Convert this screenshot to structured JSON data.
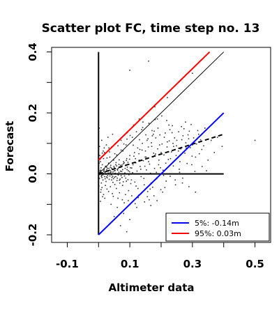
{
  "chart_data": {
    "type": "scatter",
    "title": "Scatter plot FC, time step no. 13",
    "xlabel": "Altimeter data",
    "ylabel": "Forecast",
    "xlim": [
      -0.15,
      0.55
    ],
    "ylim": [
      -0.225,
      0.415
    ],
    "x_ticks": [
      {
        "value": -0.1,
        "label": "-0.1"
      },
      {
        "value": 0.1,
        "label": "0.1"
      },
      {
        "value": 0.3,
        "label": "0.3"
      },
      {
        "value": 0.5,
        "label": "0.5"
      }
    ],
    "x_minor_ticks": [
      0.0,
      0.2,
      0.4
    ],
    "y_ticks": [
      {
        "value": -0.2,
        "label": "-0.2"
      },
      {
        "value": 0.0,
        "label": "0.0"
      },
      {
        "value": 0.2,
        "label": "0.2"
      },
      {
        "value": 0.4,
        "label": "0.4"
      }
    ],
    "y_minor_ticks": [
      -0.1,
      0.1,
      0.3
    ],
    "grid": false,
    "legend_position": "bottom-right",
    "colors": {
      "red": "#ff0000",
      "blue": "#0000ff",
      "black": "#000000"
    },
    "lines": [
      {
        "id": "vertical-axis",
        "color": "#000000",
        "style": "solid",
        "x1": 0.0,
        "y1": -0.2,
        "x2": 0.0,
        "y2": 0.4
      },
      {
        "id": "horizontal-zero",
        "color": "#000000",
        "style": "solid",
        "x1": 0.0,
        "y1": 0.0,
        "x2": 0.4,
        "y2": 0.0
      },
      {
        "id": "one-to-one",
        "color": "#000000",
        "style": "solid",
        "x1": 0.0,
        "y1": 0.0,
        "x2": 0.4,
        "y2": 0.4
      },
      {
        "id": "regression",
        "color": "#000000",
        "style": "dashed",
        "x1": 0.0,
        "y1": 0.0,
        "x2": 0.4,
        "y2": 0.13
      },
      {
        "id": "quantile-95",
        "color": "#ff0000",
        "style": "solid",
        "x1": 0.0,
        "y1": 0.045,
        "x2": 0.355,
        "y2": 0.4
      },
      {
        "id": "quantile-5",
        "color": "#0000ff",
        "style": "solid",
        "x1": 0.0,
        "y1": -0.2,
        "x2": 0.4,
        "y2": 0.2
      }
    ],
    "legend": [
      {
        "label": "5%: -0.14m",
        "color": "#0000ff"
      },
      {
        "label": "95%:  0.03m",
        "color": "#ff0000"
      }
    ],
    "points": [
      [
        0.005,
        0.01
      ],
      [
        0.01,
        -0.005
      ],
      [
        0.015,
        0.002
      ],
      [
        0.008,
        0.02
      ],
      [
        0.02,
        0.005
      ],
      [
        0.003,
        -0.015
      ],
      [
        0.012,
        0.03
      ],
      [
        0.025,
        -0.01
      ],
      [
        0.018,
        0.015
      ],
      [
        0.006,
        0.04
      ],
      [
        0.03,
        0.0
      ],
      [
        0.009,
        -0.03
      ],
      [
        0.022,
        0.025
      ],
      [
        0.035,
        0.012
      ],
      [
        0.014,
        -0.02
      ],
      [
        0.004,
        0.06
      ],
      [
        0.028,
        0.018
      ],
      [
        0.04,
        0.006
      ],
      [
        0.011,
        -0.045
      ],
      [
        0.032,
        0.035
      ],
      [
        0.045,
        -0.008
      ],
      [
        0.016,
        0.05
      ],
      [
        0.038,
        0.022
      ],
      [
        0.05,
        0.01
      ],
      [
        0.007,
        -0.06
      ],
      [
        0.024,
        -0.025
      ],
      [
        0.055,
        0.03
      ],
      [
        0.042,
        -0.02
      ],
      [
        0.06,
        0.015
      ],
      [
        0.019,
        0.07
      ],
      [
        0.048,
        0.045
      ],
      [
        0.065,
        0.005
      ],
      [
        0.013,
        -0.075
      ],
      [
        0.052,
        -0.035
      ],
      [
        0.07,
        0.028
      ],
      [
        0.036,
        0.055
      ],
      [
        0.075,
        -0.012
      ],
      [
        0.027,
        -0.05
      ],
      [
        0.08,
        0.04
      ],
      [
        0.058,
        0.062
      ],
      [
        0.085,
        0.018
      ],
      [
        0.044,
        -0.065
      ],
      [
        0.09,
        0.05
      ],
      [
        0.068,
        -0.03
      ],
      [
        0.095,
        0.01
      ],
      [
        0.033,
        0.085
      ],
      [
        0.1,
        0.06
      ],
      [
        0.078,
        0.075
      ],
      [
        0.105,
        -0.02
      ],
      [
        0.062,
        -0.08
      ],
      [
        0.11,
        0.03
      ],
      [
        0.088,
        0.095
      ],
      [
        0.115,
        0.07
      ],
      [
        0.072,
        0.11
      ],
      [
        0.12,
        -0.04
      ],
      [
        0.096,
        -0.055
      ],
      [
        0.125,
        0.085
      ],
      [
        0.054,
        0.1
      ],
      [
        0.13,
        0.045
      ],
      [
        0.108,
        0.12
      ],
      [
        0.135,
        0.015
      ],
      [
        0.082,
        -0.095
      ],
      [
        0.14,
        0.1
      ],
      [
        0.118,
        0.05
      ],
      [
        0.145,
        -0.015
      ],
      [
        0.092,
        0.135
      ],
      [
        0.15,
        0.075
      ],
      [
        0.128,
        -0.07
      ],
      [
        0.155,
        0.11
      ],
      [
        0.102,
        0.02
      ],
      [
        0.16,
        0.04
      ],
      [
        0.138,
        0.145
      ],
      [
        0.165,
        -0.05
      ],
      [
        0.112,
        0.16
      ],
      [
        0.17,
        0.09
      ],
      [
        0.148,
        0.025
      ],
      [
        0.175,
        0.13
      ],
      [
        0.122,
        -0.11
      ],
      [
        0.18,
        0.06
      ],
      [
        0.158,
        0.115
      ],
      [
        0.185,
        0.005
      ],
      [
        0.132,
        0.08
      ],
      [
        0.19,
        0.15
      ],
      [
        0.168,
        -0.03
      ],
      [
        0.195,
        0.095
      ],
      [
        0.142,
        0.17
      ],
      [
        0.2,
        0.07
      ],
      [
        0.178,
        0.14
      ],
      [
        0.205,
        -0.06
      ],
      [
        0.152,
        0.055
      ],
      [
        0.21,
        0.12
      ],
      [
        0.188,
        0.18
      ],
      [
        0.215,
        0.035
      ],
      [
        0.162,
        -0.085
      ],
      [
        0.22,
        0.105
      ],
      [
        0.198,
        0.02
      ],
      [
        0.225,
        0.16
      ],
      [
        0.172,
        0.125
      ],
      [
        0.23,
        0.05
      ],
      [
        0.208,
        -0.005
      ],
      [
        0.235,
        0.135
      ],
      [
        0.182,
        0.065
      ],
      [
        0.24,
        0.09
      ],
      [
        0.218,
        0.175
      ],
      [
        0.245,
        -0.02
      ],
      [
        0.192,
        0.03
      ],
      [
        0.25,
        0.11
      ],
      [
        0.228,
        0.145
      ],
      [
        0.255,
        0.075
      ],
      [
        0.202,
        0.19
      ],
      [
        0.26,
        0.04
      ],
      [
        0.238,
        0.1
      ],
      [
        0.265,
        0.155
      ],
      [
        0.212,
        -0.045
      ],
      [
        0.27,
        0.125
      ],
      [
        0.248,
        0.06
      ],
      [
        0.28,
        0.085
      ],
      [
        0.258,
        0.015
      ],
      [
        0.29,
        0.14
      ],
      [
        0.268,
        -0.03
      ],
      [
        0.3,
        0.095
      ],
      [
        0.278,
        0.17
      ],
      [
        0.31,
        0.055
      ],
      [
        0.288,
        0.115
      ],
      [
        0.32,
        0.13
      ],
      [
        0.298,
        0.03
      ],
      [
        0.33,
        0.08
      ],
      [
        0.34,
        0.15
      ],
      [
        0.35,
        0.045
      ],
      [
        0.36,
        0.11
      ],
      [
        0.37,
        0.07
      ],
      [
        0.38,
        0.12
      ],
      [
        0.395,
        0.09
      ],
      [
        0.31,
        -0.06
      ],
      [
        0.345,
        0.01
      ],
      [
        0.5,
        0.11
      ],
      [
        0.1,
        0.34
      ],
      [
        0.16,
        0.37
      ],
      [
        0.3,
        0.33
      ],
      [
        0.22,
        0.25
      ],
      [
        0.18,
        0.22
      ],
      [
        0.13,
        0.18
      ],
      [
        0.06,
        -0.11
      ],
      [
        0.08,
        -0.13
      ],
      [
        0.1,
        -0.15
      ],
      [
        0.04,
        -0.1
      ],
      [
        0.02,
        -0.08
      ],
      [
        0.05,
        -0.14
      ],
      [
        0.07,
        -0.17
      ],
      [
        0.09,
        -0.19
      ],
      [
        0.03,
        0.12
      ],
      [
        0.045,
        0.13
      ],
      [
        0.025,
        0.095
      ],
      [
        0.015,
        0.075
      ],
      [
        0.002,
        0.035
      ],
      [
        0.001,
        -0.04
      ],
      [
        0.003,
        0.09
      ],
      [
        0.006,
        -0.09
      ],
      [
        0.01,
        0.11
      ],
      [
        0.002,
        0.15
      ],
      [
        0.001,
        0.005
      ],
      [
        0.004,
        -0.002
      ],
      [
        0.007,
        0.012
      ],
      [
        0.011,
        -0.012
      ],
      [
        0.017,
        0.008
      ],
      [
        0.021,
        -0.016
      ],
      [
        0.023,
        0.001
      ],
      [
        0.026,
        0.022
      ],
      [
        0.029,
        -0.006
      ],
      [
        0.031,
        0.009
      ],
      [
        0.034,
        -0.018
      ],
      [
        0.037,
        0.004
      ],
      [
        0.039,
        0.028
      ],
      [
        0.041,
        -0.003
      ],
      [
        0.043,
        0.016
      ],
      [
        0.046,
        -0.028
      ],
      [
        0.049,
        0.024
      ],
      [
        0.051,
        -0.011
      ],
      [
        0.053,
        0.002
      ],
      [
        0.056,
        0.037
      ],
      [
        0.059,
        -0.022
      ],
      [
        0.061,
        0.012
      ],
      [
        0.063,
        -0.004
      ],
      [
        0.066,
        0.046
      ],
      [
        0.069,
        -0.017
      ],
      [
        0.071,
        0.021
      ],
      [
        0.074,
        0.008
      ],
      [
        0.077,
        -0.038
      ],
      [
        0.079,
        0.033
      ],
      [
        0.083,
        -0.007
      ],
      [
        0.086,
        0.027
      ],
      [
        0.089,
        -0.024
      ],
      [
        0.091,
        0.014
      ],
      [
        0.094,
        0.038
      ],
      [
        0.097,
        -0.003
      ],
      [
        0.099,
        0.048
      ],
      [
        0.103,
        -0.032
      ],
      [
        0.106,
        0.019
      ],
      [
        0.109,
        0.004
      ],
      [
        0.113,
        0.058
      ],
      [
        0.116,
        -0.027
      ],
      [
        0.119,
        0.036
      ],
      [
        0.123,
        0.009
      ],
      [
        0.126,
        -0.048
      ],
      [
        0.129,
        0.066
      ],
      [
        0.133,
        0.024
      ],
      [
        0.136,
        -0.009
      ],
      [
        0.139,
        0.078
      ],
      [
        0.143,
        0.043
      ],
      [
        0.146,
        -0.036
      ],
      [
        0.149,
        0.055
      ],
      [
        0.153,
        0.013
      ],
      [
        0.156,
        -0.075
      ],
      [
        0.159,
        0.088
      ],
      [
        0.163,
        0.032
      ],
      [
        0.166,
        0.002
      ],
      [
        0.169,
        0.102
      ],
      [
        0.173,
        -0.044
      ],
      [
        0.176,
        0.068
      ],
      [
        0.179,
        0.018
      ],
      [
        0.183,
        0.118
      ],
      [
        0.186,
        -0.016
      ],
      [
        0.189,
        0.082
      ],
      [
        0.193,
        0.045
      ],
      [
        0.196,
        0.128
      ],
      [
        0.199,
        -0.052
      ],
      [
        0.203,
        0.098
      ],
      [
        0.206,
        0.012
      ],
      [
        0.209,
        0.062
      ],
      [
        0.213,
        0.134
      ],
      [
        0.216,
        -0.024
      ],
      [
        0.219,
        0.088
      ],
      [
        0.223,
        0.047
      ],
      [
        0.226,
        0.108
      ],
      [
        0.229,
        -0.008
      ],
      [
        0.233,
        0.072
      ],
      [
        0.236,
        0.158
      ],
      [
        0.239,
        0.026
      ],
      [
        0.243,
        0.118
      ],
      [
        0.246,
        -0.036
      ],
      [
        0.249,
        0.092
      ],
      [
        0.253,
        0.052
      ],
      [
        0.256,
        0.138
      ],
      [
        0.259,
        0.005
      ],
      [
        0.263,
        0.082
      ],
      [
        0.266,
        0.112
      ],
      [
        0.269,
        -0.014
      ],
      [
        0.273,
        0.148
      ],
      [
        0.276,
        0.068
      ],
      [
        0.279,
        0.102
      ],
      [
        0.283,
        0.034
      ],
      [
        0.286,
        0.128
      ],
      [
        0.289,
        -0.042
      ],
      [
        0.293,
        0.086
      ],
      [
        0.296,
        0.162
      ],
      [
        0.299,
        0.058
      ],
      [
        0.304,
        0.118
      ],
      [
        0.308,
        0.008
      ],
      [
        0.313,
        0.098
      ],
      [
        0.317,
        0.142
      ],
      [
        0.322,
        0.066
      ],
      [
        0.326,
        0.112
      ],
      [
        0.331,
        0.024
      ],
      [
        0.336,
        0.092
      ],
      [
        0.005,
        0.048
      ],
      [
        0.008,
        -0.052
      ],
      [
        0.012,
        0.068
      ],
      [
        0.016,
        -0.068
      ],
      [
        0.018,
        0.085
      ],
      [
        0.022,
        -0.038
      ],
      [
        0.027,
        0.052
      ],
      [
        0.032,
        -0.058
      ],
      [
        0.035,
        0.072
      ],
      [
        0.038,
        -0.042
      ],
      [
        0.042,
        0.088
      ],
      [
        0.047,
        -0.074
      ],
      [
        0.052,
        0.066
      ],
      [
        0.057,
        -0.048
      ],
      [
        0.062,
        0.092
      ],
      [
        0.067,
        -0.062
      ],
      [
        0.072,
        0.078
      ],
      [
        0.076,
        -0.085
      ],
      [
        0.081,
        0.098
      ],
      [
        0.086,
        -0.068
      ],
      [
        0.091,
        0.114
      ],
      [
        0.095,
        -0.088
      ],
      [
        0.101,
        0.126
      ],
      [
        0.106,
        -0.072
      ],
      [
        0.111,
        0.094
      ],
      [
        0.117,
        -0.098
      ],
      [
        0.121,
        0.138
      ],
      [
        0.127,
        -0.078
      ],
      [
        0.131,
        0.112
      ],
      [
        0.137,
        -0.064
      ],
      [
        0.141,
        0.152
      ],
      [
        0.147,
        -0.092
      ],
      [
        0.151,
        0.128
      ],
      [
        0.157,
        -0.058
      ],
      [
        0.161,
        0.166
      ],
      [
        0.167,
        -0.104
      ],
      [
        0.171,
        0.142
      ],
      [
        0.177,
        -0.072
      ],
      [
        0.181,
        0.178
      ],
      [
        0.187,
        -0.088
      ],
      [
        0.003,
        0.003
      ],
      [
        0.006,
        0.007
      ],
      [
        0.009,
        -0.008
      ],
      [
        0.012,
        0.004
      ],
      [
        0.014,
        -0.003
      ],
      [
        0.017,
        0.011
      ],
      [
        0.019,
        -0.009
      ],
      [
        0.021,
        0.006
      ],
      [
        0.024,
        -0.001
      ],
      [
        0.026,
        0.013
      ],
      [
        0.028,
        -0.013
      ],
      [
        0.031,
        0.003
      ],
      [
        0.033,
        0.018
      ],
      [
        0.036,
        -0.007
      ],
      [
        0.038,
        0.01
      ],
      [
        0.041,
        0.019
      ],
      [
        0.043,
        -0.012
      ],
      [
        0.046,
        0.006
      ],
      [
        0.048,
        -0.016
      ],
      [
        0.05,
        0.021
      ],
      [
        0.053,
        0.011
      ],
      [
        0.055,
        -0.009
      ],
      [
        0.058,
        0.026
      ],
      [
        0.06,
        -0.014
      ],
      [
        0.063,
        0.018
      ],
      [
        0.065,
        0.031
      ],
      [
        0.067,
        -0.021
      ],
      [
        0.07,
        0.009
      ],
      [
        0.072,
        -0.006
      ],
      [
        0.075,
        0.029
      ],
      [
        0.077,
        0.014
      ],
      [
        0.079,
        -0.026
      ],
      [
        0.082,
        0.036
      ],
      [
        0.084,
        0.003
      ],
      [
        0.087,
        -0.014
      ],
      [
        0.089,
        0.044
      ],
      [
        0.092,
        0.022
      ],
      [
        0.094,
        -0.019
      ],
      [
        0.097,
        0.031
      ],
      [
        0.099,
        0.007
      ]
    ]
  }
}
